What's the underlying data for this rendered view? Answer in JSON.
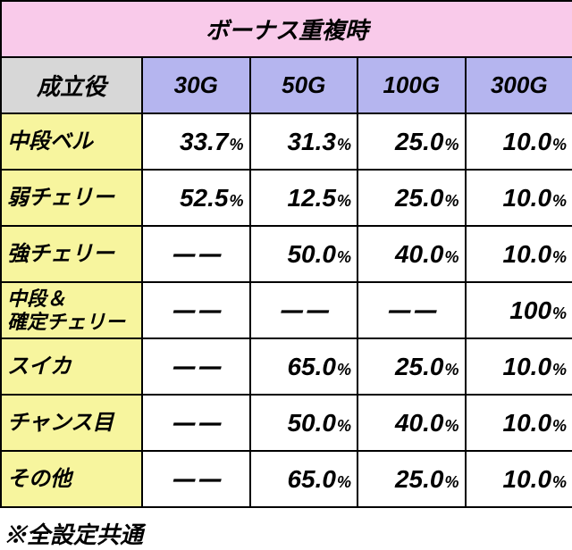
{
  "title": "ボーナス重複時",
  "label_head": "成立役",
  "columns": [
    "30G",
    "50G",
    "100G",
    "300G"
  ],
  "rows": [
    {
      "label": "中段ベル",
      "twoline": false,
      "cells": [
        {
          "t": "pct",
          "v": "33.7"
        },
        {
          "t": "pct",
          "v": "31.3"
        },
        {
          "t": "pct",
          "v": "25.0"
        },
        {
          "t": "pct",
          "v": "10.0"
        }
      ]
    },
    {
      "label": "弱チェリー",
      "twoline": false,
      "cells": [
        {
          "t": "pct",
          "v": "52.5"
        },
        {
          "t": "pct",
          "v": "12.5"
        },
        {
          "t": "pct",
          "v": "25.0"
        },
        {
          "t": "pct",
          "v": "10.0"
        }
      ]
    },
    {
      "label": "強チェリー",
      "twoline": false,
      "cells": [
        {
          "t": "dash"
        },
        {
          "t": "pct",
          "v": "50.0"
        },
        {
          "t": "pct",
          "v": "40.0"
        },
        {
          "t": "pct",
          "v": "10.0"
        }
      ]
    },
    {
      "label": "中段＆\n確定チェリー",
      "twoline": true,
      "cells": [
        {
          "t": "dash"
        },
        {
          "t": "dash"
        },
        {
          "t": "dash"
        },
        {
          "t": "pct",
          "v": "100"
        }
      ]
    },
    {
      "label": "スイカ",
      "twoline": false,
      "cells": [
        {
          "t": "dash"
        },
        {
          "t": "pct",
          "v": "65.0"
        },
        {
          "t": "pct",
          "v": "25.0"
        },
        {
          "t": "pct",
          "v": "10.0"
        }
      ]
    },
    {
      "label": "チャンス目",
      "twoline": false,
      "cells": [
        {
          "t": "dash"
        },
        {
          "t": "pct",
          "v": "50.0"
        },
        {
          "t": "pct",
          "v": "40.0"
        },
        {
          "t": "pct",
          "v": "10.0"
        }
      ]
    },
    {
      "label": "その他",
      "twoline": false,
      "cells": [
        {
          "t": "dash"
        },
        {
          "t": "pct",
          "v": "65.0"
        },
        {
          "t": "pct",
          "v": "25.0"
        },
        {
          "t": "pct",
          "v": "10.0"
        }
      ]
    }
  ],
  "footer": "※全設定共通",
  "percent_symbol": "%",
  "dash_glyph": "－－",
  "colors": {
    "title_bg": "#f9caea",
    "label_head_bg": "#d7d7d7",
    "col_head_bg": "#b5b5ef",
    "row_label_bg": "#f7f59e",
    "border": "#000000"
  }
}
